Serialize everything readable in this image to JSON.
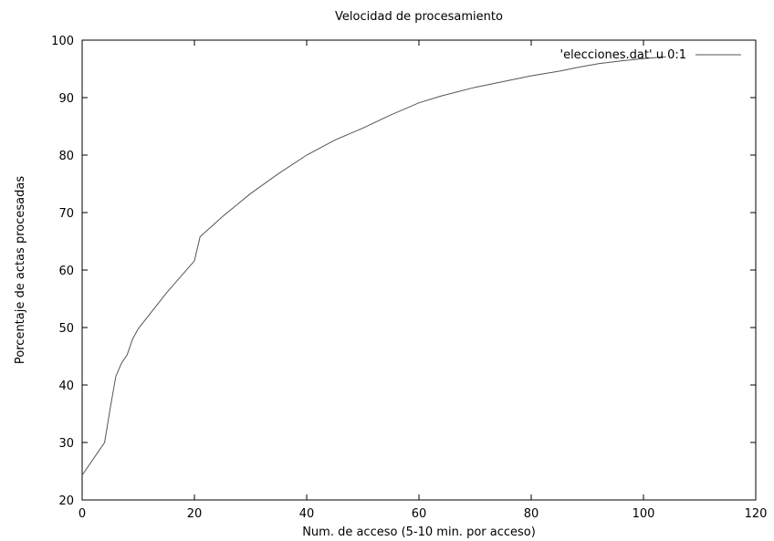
{
  "chart_data": {
    "type": "line",
    "title": "Velocidad de procesamiento",
    "xlabel": "Num. de acceso (5-10 min. por acceso)",
    "ylabel": "Porcentaje de actas procesadas",
    "xlim": [
      0,
      120
    ],
    "ylim": [
      20,
      100
    ],
    "xticks": [
      0,
      20,
      40,
      60,
      80,
      100,
      120
    ],
    "yticks": [
      20,
      30,
      40,
      50,
      60,
      70,
      80,
      90,
      100
    ],
    "grid": false,
    "legend_position": "top-right",
    "series": [
      {
        "name": "'elecciones.dat' u 0:1",
        "color": "#555555",
        "x": [
          0,
          4,
          5,
          6,
          7,
          8,
          9,
          10,
          15,
          20,
          21,
          25,
          30,
          35,
          40,
          45,
          50,
          55,
          60,
          64,
          70,
          80,
          85,
          88,
          92,
          96,
          100,
          104
        ],
        "y": [
          24.3,
          30,
          36,
          41.5,
          43.8,
          45.2,
          48,
          49.8,
          56,
          61.6,
          65.8,
          69.3,
          73.3,
          76.8,
          80,
          82.6,
          84.7,
          87,
          89.1,
          90.3,
          91.8,
          93.8,
          94.6,
          95.2,
          95.9,
          96.4,
          96.8,
          97.1
        ]
      }
    ]
  }
}
